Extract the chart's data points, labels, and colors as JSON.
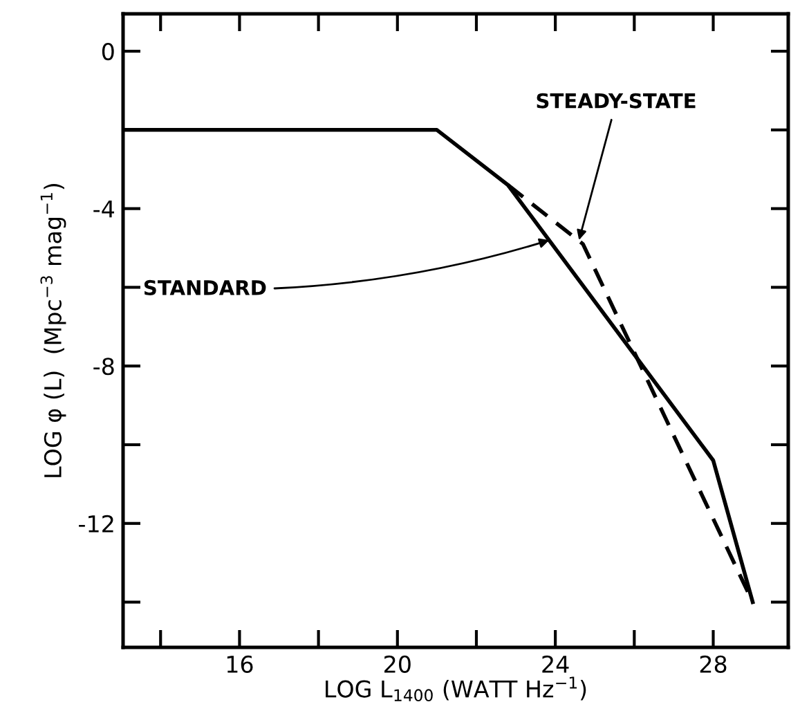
{
  "chart_data": {
    "type": "line",
    "xlabel": "LOG L$_{1400}$ (WATT Hz$^{−1}$)",
    "ylabel": "LOG φ (L)  (Mpc$^{−3}$ mag$^{−1}$)",
    "xlim": [
      13.05,
      29.9
    ],
    "ylim": [
      -15.15,
      0.95
    ],
    "xticks": [
      {
        "value": 14,
        "label": null
      },
      16,
      {
        "value": 18,
        "label": null
      },
      20,
      {
        "value": 22,
        "label": null
      },
      24,
      {
        "value": 26,
        "label": null
      },
      28
    ],
    "yticks": [
      0,
      {
        "value": -2,
        "label": null
      },
      -4,
      {
        "value": -6,
        "label": null
      },
      -8,
      {
        "value": -10,
        "label": null
      },
      -12,
      {
        "value": -14,
        "label": null
      }
    ],
    "annotations": [
      {
        "text": "STANDARD",
        "x": 23.85,
        "y": -4.8
      },
      {
        "text": "STEADY-STATE",
        "x": 24.6,
        "y": -4.8
      }
    ],
    "grid": false,
    "legend": false,
    "marker": "none",
    "series": [
      {
        "color": "#000000",
        "line_style": "solid",
        "x": [
          13.05,
          21.0,
          22.8,
          28.0,
          29.0
        ],
        "values": [
          -2.0,
          -2.0,
          -3.4,
          -10.4,
          -14.0
        ]
      },
      {
        "color": "#000000",
        "line_style": "dashed",
        "x": [
          22.8,
          24.7,
          29.0
        ],
        "values": [
          -3.4,
          -4.9,
          -14.0
        ]
      }
    ]
  }
}
